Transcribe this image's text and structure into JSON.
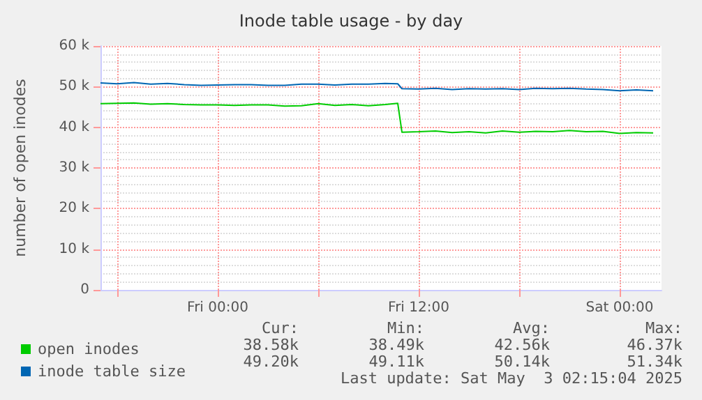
{
  "chart_data": {
    "type": "line",
    "title": "Inode table usage - by day",
    "ylabel": "number of open inodes",
    "x": [
      "2025-05-01T17:00",
      "2025-05-01T18:00",
      "2025-05-01T19:00",
      "2025-05-01T20:00",
      "2025-05-01T21:00",
      "2025-05-01T22:00",
      "2025-05-01T23:00",
      "2025-05-02T00:00",
      "2025-05-02T01:00",
      "2025-05-02T02:00",
      "2025-05-02T03:00",
      "2025-05-02T04:00",
      "2025-05-02T05:00",
      "2025-05-02T06:00",
      "2025-05-02T07:00",
      "2025-05-02T08:00",
      "2025-05-02T09:00",
      "2025-05-02T10:00",
      "2025-05-02T10:45",
      "2025-05-02T11:00",
      "2025-05-02T12:00",
      "2025-05-02T13:00",
      "2025-05-02T14:00",
      "2025-05-02T15:00",
      "2025-05-02T16:00",
      "2025-05-02T17:00",
      "2025-05-02T18:00",
      "2025-05-02T19:00",
      "2025-05-02T20:00",
      "2025-05-02T21:00",
      "2025-05-02T22:00",
      "2025-05-02T23:00",
      "2025-05-03T00:00",
      "2025-05-03T01:00",
      "2025-05-03T02:00"
    ],
    "series": [
      {
        "name": "open inodes",
        "color": "#00cc00",
        "values": [
          45800,
          45900,
          46000,
          45700,
          45800,
          45600,
          45500,
          45500,
          45400,
          45500,
          45500,
          45200,
          45300,
          45800,
          45400,
          45600,
          45300,
          45600,
          45900,
          38800,
          38900,
          39100,
          38700,
          38900,
          38600,
          39100,
          38800,
          39000,
          38900,
          39200,
          38900,
          39000,
          38500,
          38700,
          38600
        ]
      },
      {
        "name": "inode table size",
        "color": "#0066b3",
        "values": [
          50900,
          50700,
          51000,
          50600,
          50800,
          50500,
          50300,
          50400,
          50500,
          50500,
          50300,
          50300,
          50600,
          50600,
          50400,
          50600,
          50600,
          50800,
          50700,
          49500,
          49400,
          49600,
          49300,
          49500,
          49400,
          49500,
          49300,
          49600,
          49500,
          49600,
          49400,
          49300,
          49000,
          49200,
          49000
        ]
      }
    ],
    "xlim": [
      "2025-05-01T17:00",
      "2025-05-03T02:30"
    ],
    "xticks": [
      {
        "value": "2025-05-01T18:00",
        "label": null
      },
      {
        "value": "2025-05-02T00:00",
        "label": "Fri 00:00"
      },
      {
        "value": "2025-05-02T06:00",
        "label": null
      },
      {
        "value": "2025-05-02T12:00",
        "label": "Fri 12:00"
      },
      {
        "value": "2025-05-02T18:00",
        "label": null
      },
      {
        "value": "2025-05-03T00:00",
        "label": "Sat 00:00"
      }
    ],
    "ylim": [
      0,
      60000
    ],
    "yticks": [
      {
        "value": 0,
        "label": "0"
      },
      {
        "value": 10000,
        "label": "10 k"
      },
      {
        "value": 20000,
        "label": "20 k"
      },
      {
        "value": 30000,
        "label": "30 k"
      },
      {
        "value": 40000,
        "label": "40 k"
      },
      {
        "value": 50000,
        "label": "50 k"
      },
      {
        "value": 60000,
        "label": "60 k"
      }
    ],
    "grid": true,
    "legend": "bottom left",
    "marker": "none",
    "line_style": "solid",
    "annotations": [
      "Cur:",
      "Min:",
      "Avg:",
      "Max:",
      "38.58k",
      "38.49k",
      "42.56k",
      "46.37k",
      "49.20k",
      "49.11k",
      "50.14k",
      "51.34k",
      "Last update: Sat May  3 02:15:04 2025"
    ]
  }
}
